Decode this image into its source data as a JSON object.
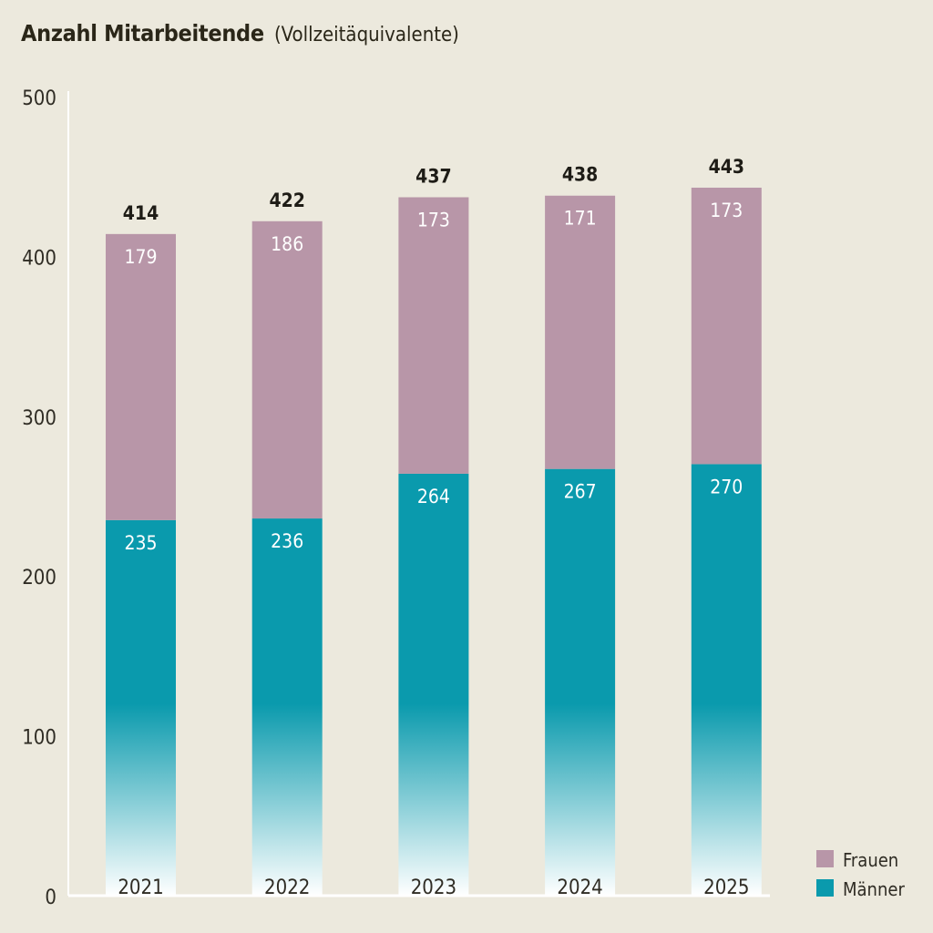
{
  "title": {
    "main": "Anzahl Mitarbeitende",
    "sub": "(Vollzeitäquivalente)"
  },
  "colors": {
    "frauen": "#b896a8",
    "maenner": "#0a9aad",
    "maenner_fade": "#ffffff",
    "axis": "#ffffff",
    "background": "#ece9dd"
  },
  "chart_data": {
    "type": "bar",
    "stacked": true,
    "title": "Anzahl Mitarbeitende (Vollzeitäquivalente)",
    "xlabel": "",
    "ylabel": "",
    "categories": [
      "2021",
      "2022",
      "2023",
      "2024",
      "2025"
    ],
    "series": [
      {
        "name": "Männer",
        "key": "maenner",
        "values": [
          235,
          236,
          264,
          267,
          270
        ]
      },
      {
        "name": "Frauen",
        "key": "frauen",
        "values": [
          179,
          186,
          173,
          171,
          173
        ]
      }
    ],
    "totals": [
      414,
      422,
      437,
      438,
      443
    ],
    "ylim": [
      0,
      500
    ],
    "yticks": [
      0,
      100,
      200,
      300,
      400,
      500
    ],
    "grid": false,
    "legend": {
      "position": "bottom-right",
      "entries": [
        {
          "label": "Frauen",
          "key": "frauen"
        },
        {
          "label": "Männer",
          "key": "maenner"
        }
      ]
    }
  }
}
